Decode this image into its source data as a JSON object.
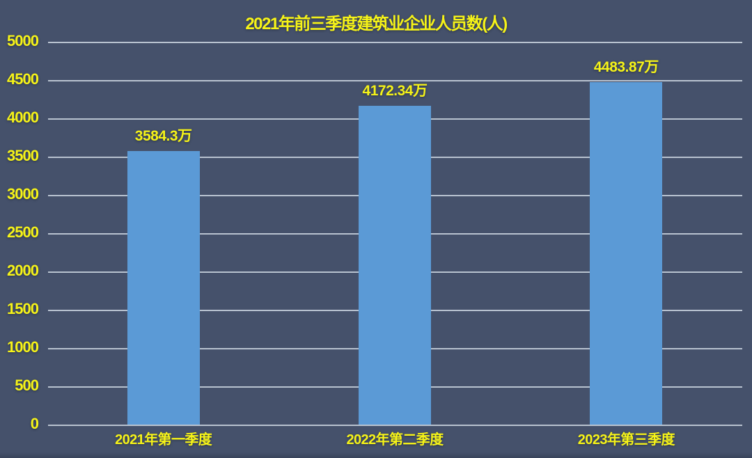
{
  "colors": {
    "background": "#45516b",
    "bar": "#5b9ad6",
    "text": "#f6f318",
    "gridline": "#b9c3d0"
  },
  "chart_data": {
    "type": "bar",
    "title": "2021年前三季度建筑业企业人员数(人)",
    "categories": [
      "2021年第一季度",
      "2022年第二季度",
      "2023年第三季度"
    ],
    "values": [
      3584.3,
      4172.34,
      4483.87
    ],
    "value_labels": [
      "3584.3万",
      "4172.34万",
      "4483.87万"
    ],
    "ytick_labels": [
      "0",
      "500",
      "1000",
      "1500",
      "2000",
      "2500",
      "3000",
      "3500",
      "4000",
      "4500",
      "5000"
    ],
    "xlabel": "",
    "ylabel": "",
    "ylim": [
      0,
      5000
    ],
    "ytick_step": 500,
    "grid": true,
    "legend": false,
    "bar_color": "#5b9ad6",
    "label_color": "#f6f318"
  }
}
